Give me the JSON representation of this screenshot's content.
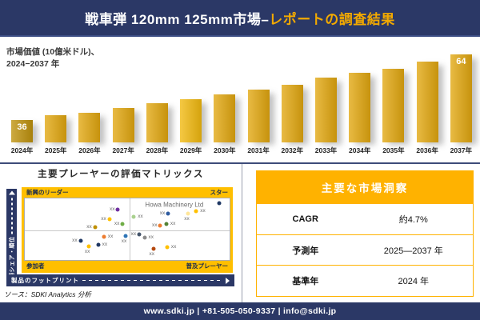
{
  "header": {
    "title_main": "戦車弾 120mm 125mm市場–",
    "title_accent": "レポートの調査結果"
  },
  "colors": {
    "navy": "#2B3866",
    "accent_gold": "#F2A900",
    "matrix_band_gold": "#FFBF00",
    "table_gold": "#FFB200",
    "bar_gold": "#E2A70F"
  },
  "chart_data": [
    {
      "type": "bar",
      "title": "市場価値 (10億米ドル)、2024−2037 年",
      "title_line1": "市場価値 (10億米ドル)、",
      "title_line2": "2024−2037 年",
      "categories": [
        "2024年",
        "2025年",
        "2026年",
        "2027年",
        "2028年",
        "2029年",
        "2030年",
        "2031年",
        "2032年",
        "2033年",
        "2034年",
        "2035年",
        "2036年",
        "2037年"
      ],
      "values": [
        36,
        38,
        39,
        41,
        43,
        45,
        47,
        49,
        51,
        54,
        56,
        58,
        61,
        64
      ],
      "labeled_values": {
        "first": 36,
        "last": 64
      },
      "bar_colors": [
        "#BF920C",
        "#E2A70F",
        "#E2A70F",
        "#E2A70F",
        "#E2A70F",
        "#F2B90F",
        "#E2A70F",
        "#E2A70F",
        "#E2A70F",
        "#E2A70F",
        "#E2A70F",
        "#E2A70F",
        "#E2A70F",
        "#E2A70F"
      ],
      "ylim": [
        36,
        64
      ],
      "grid": false
    },
    {
      "type": "scatter",
      "title": "主要プレーヤーの評価マトリックス",
      "xlabel": "製品のフットプリント",
      "ylabel": "市場シェア・順位",
      "quadrant_labels": {
        "top_left": "新興のリーダー",
        "top_right": "スター",
        "bottom_left": "参加者",
        "bottom_right": "普及プレーヤー"
      },
      "annotation": "Howa Machinery  Ltd",
      "source": "ソース：SDKI Analytics 分析",
      "points": [
        {
          "x": 45.5,
          "y": 18.0,
          "color": "#7030A0",
          "label": "xx",
          "label_side": "left"
        },
        {
          "x": 41.3,
          "y": 33.6,
          "color": "#FFC000",
          "label": "xx",
          "label_side": "left"
        },
        {
          "x": 34.3,
          "y": 46.3,
          "color": "#BF8F00",
          "label": "xx",
          "label_side": "left"
        },
        {
          "x": 47.8,
          "y": 42.1,
          "color": "#6FAD46",
          "label": "xx",
          "label_side": "left"
        },
        {
          "x": 38.6,
          "y": 62.8,
          "color": "#ED7D31",
          "label": "xx",
          "label_side": "right"
        },
        {
          "x": 49.1,
          "y": 61.1,
          "color": "#2E75B6",
          "label": "xx",
          "label_side": "below"
        },
        {
          "x": 27.2,
          "y": 69.1,
          "color": "#1F3864",
          "label": "xx",
          "label_side": "left"
        },
        {
          "x": 35.8,
          "y": 75.5,
          "color": "#203864",
          "label": "xx",
          "label_side": "right"
        },
        {
          "x": 31.2,
          "y": 78.4,
          "color": "#FFC000",
          "label": "xx",
          "label_side": "below"
        },
        {
          "x": 95.0,
          "y": 7.9,
          "color": "#1F3864",
          "label": "",
          "label_side": "none"
        },
        {
          "x": 83.7,
          "y": 20.4,
          "color": "#FFC000",
          "label": "xx",
          "label_side": "right"
        },
        {
          "x": 79.8,
          "y": 25.0,
          "color": "#FFE699",
          "label": "xx",
          "label_side": "below"
        },
        {
          "x": 70.0,
          "y": 24.6,
          "color": "#2E5B9F",
          "label": "xx",
          "label_side": "left"
        },
        {
          "x": 53.2,
          "y": 30.4,
          "color": "#A9D18E",
          "label": "xx",
          "label_side": "right"
        },
        {
          "x": 69.1,
          "y": 42.1,
          "color": "#538135",
          "label": "xx",
          "label_side": "right"
        },
        {
          "x": 66.2,
          "y": 44.6,
          "color": "#ED7D31",
          "label": "xx",
          "label_side": "left"
        },
        {
          "x": 55.9,
          "y": 57.9,
          "color": "#44546A",
          "label": "xx",
          "label_side": "left"
        },
        {
          "x": 58.4,
          "y": 64.1,
          "color": "#8C8C8C",
          "label": "xx",
          "label_side": "right"
        },
        {
          "x": 62.7,
          "y": 82.1,
          "color": "#B5490F",
          "label": "xx",
          "label_side": "below"
        },
        {
          "x": 69.5,
          "y": 79.1,
          "color": "#FFC000",
          "label": "xx",
          "label_side": "right"
        }
      ]
    }
  ],
  "insights": {
    "title": "主要な市場洞察",
    "rows": [
      {
        "label": "CAGR",
        "value": "約4.7%"
      },
      {
        "label": "予測年",
        "value": "2025—2037 年"
      },
      {
        "label": "基準年",
        "value": "2024 年"
      }
    ]
  },
  "footer": {
    "text": "www.sdki.jp | +81-505-050-9337 | info@sdki.jp"
  }
}
